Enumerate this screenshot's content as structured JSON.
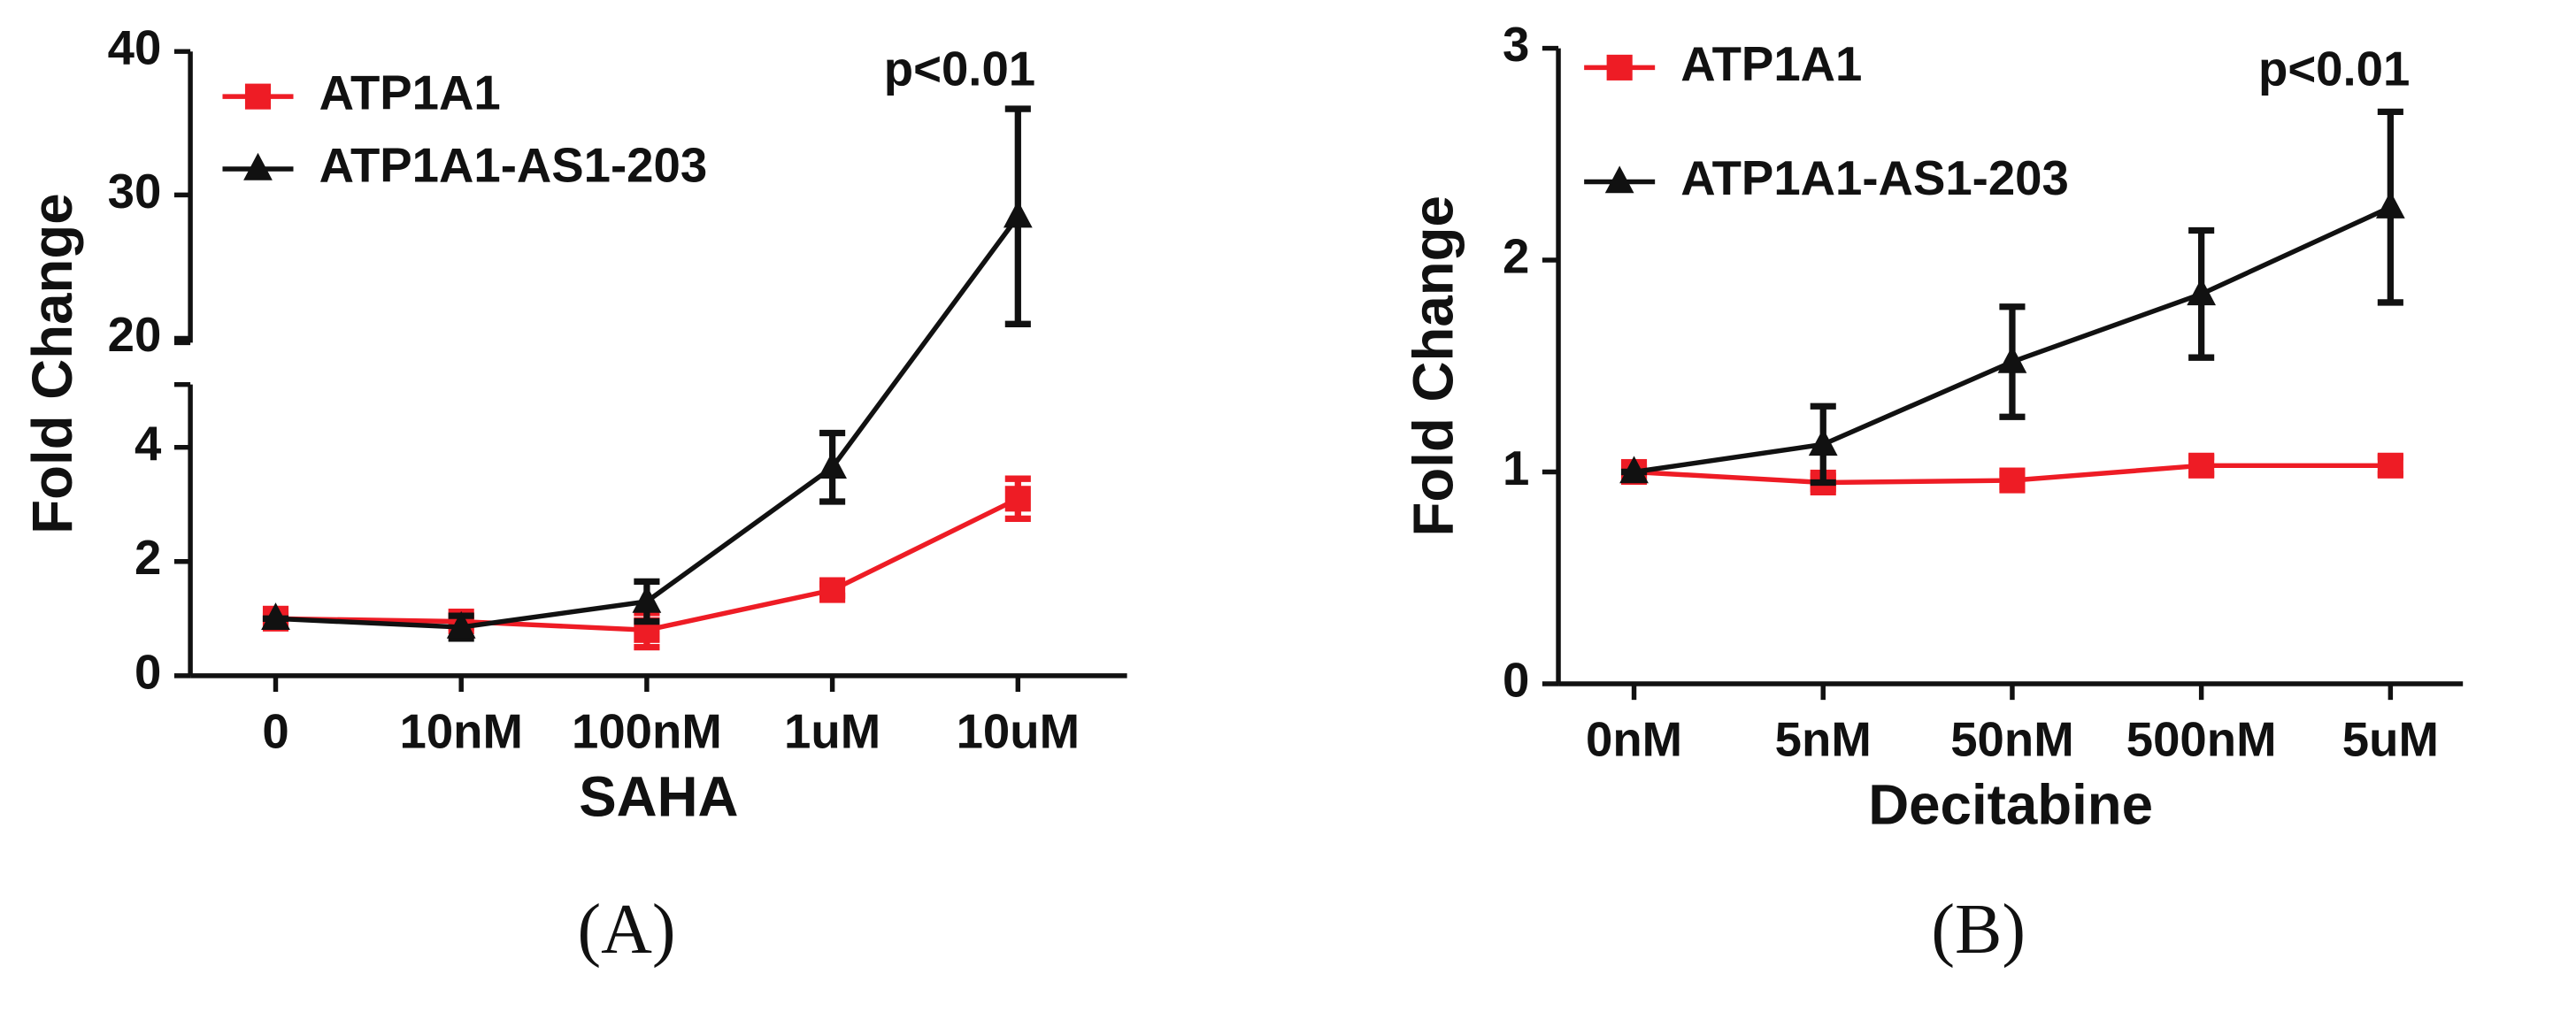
{
  "chart_data": [
    {
      "type": "line",
      "label": "(A)",
      "xlabel": "SAHA",
      "ylabel": "Fold Change",
      "annotation": "p<0.01",
      "categories": [
        "0",
        "10nM",
        "100nM",
        "1uM",
        "10uM"
      ],
      "ylim": [
        0,
        40
      ],
      "ybreak": [
        5.1,
        19.7
      ],
      "yticks": [
        0,
        2,
        4,
        20,
        30,
        40
      ],
      "series": [
        {
          "name": "ATP1A1",
          "color": "#ee1c25",
          "marker": "square",
          "values": [
            1,
            0.95,
            0.8,
            1.5,
            3.1
          ],
          "errors": [
            0.05,
            0.1,
            0.3,
            0.1,
            0.35
          ]
        },
        {
          "name": "ATP1A1-AS1-203",
          "color": "#111111",
          "marker": "triangle",
          "values": [
            1,
            0.85,
            1.3,
            3.65,
            28.5
          ],
          "errors": [
            0,
            0.2,
            0.35,
            0.6,
            7.5
          ]
        }
      ]
    },
    {
      "type": "line",
      "label": "(B)",
      "xlabel": "Decitabine",
      "ylabel": "Fold Change",
      "annotation": "p<0.01",
      "categories": [
        "0nM",
        "5nM",
        "50nM",
        "500nM",
        "5uM"
      ],
      "ylim": [
        0,
        3
      ],
      "yticks": [
        0,
        1,
        2,
        3
      ],
      "series": [
        {
          "name": "ATP1A1",
          "color": "#ee1c25",
          "marker": "square",
          "values": [
            1,
            0.95,
            0.96,
            1.03,
            1.03
          ],
          "errors": [
            0.02,
            0.03,
            0.03,
            0.04,
            0.04
          ]
        },
        {
          "name": "ATP1A1-AS1-203",
          "color": "#111111",
          "marker": "triangle",
          "values": [
            1,
            1.13,
            1.52,
            1.84,
            2.25
          ],
          "errors": [
            0,
            0.18,
            0.26,
            0.3,
            0.45
          ]
        }
      ]
    }
  ]
}
